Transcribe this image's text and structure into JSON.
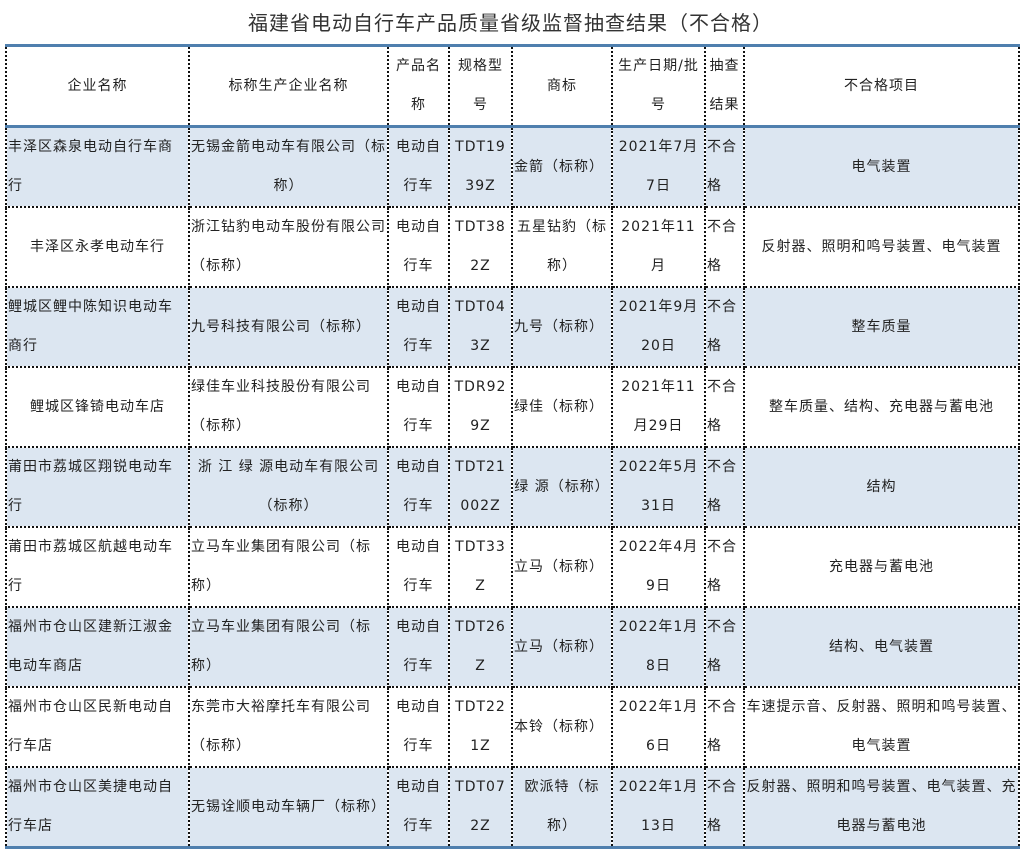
{
  "title": "福建省电动自行车产品质量省级监督抽查结果（不合格）",
  "colors": {
    "accent_border": "#4f7fae",
    "stripe": "#dce6f1"
  },
  "headers": [
    "企业名称",
    "标称生产企业名称",
    "产品名称",
    "规格型号",
    "商标",
    "生产日期/批号",
    "抽查结果",
    "不合格项目"
  ],
  "rows": [
    [
      "丰泽区森泉电动自行车商行",
      "无锡金箭电动车有限公司（标称）",
      "电动自行车",
      "TDT1939Z",
      "金箭（标称）",
      "2021年7月7日",
      "不合格",
      "电气装置"
    ],
    [
      "丰泽区永孝电动车行",
      "浙江钻豹电动车股份有限公司（标称）",
      "电动自行车",
      "TDT382Z",
      "五星钻豹（标称）",
      "2021年11月",
      "不合格",
      "反射器、照明和鸣号装置、电气装置"
    ],
    [
      "鲤城区鲤中陈知识电动车商行",
      "九号科技有限公司（标称）",
      "电动自行车",
      "TDT043Z",
      "九号（标称）",
      "2021年9月20日",
      "不合格",
      "整车质量"
    ],
    [
      "鲤城区锋锜电动车店",
      "绿佳车业科技股份有限公司（标称）",
      "电动自行车",
      "TDR929Z",
      "绿佳（标称）",
      "2021年11月29日",
      "不合格",
      "整车质量、结构、充电器与蓄电池"
    ],
    [
      "莆田市荔城区翔锐电动车行",
      "浙 江 绿 源电动车有限公司（标称）",
      "电动自行车",
      "TDT21002Z",
      "绿 源（标称）",
      "2022年5月31日",
      "不合格",
      "结构"
    ],
    [
      "莆田市荔城区航越电动车行",
      "立马车业集团有限公司（标称）",
      "电动自行车",
      "TDT33Z",
      "立马（标称）",
      "2022年4月9日",
      "不合格",
      "充电器与蓄电池"
    ],
    [
      "福州市仓山区建新江淑金电动车商店",
      "立马车业集团有限公司（标称）",
      "电动自行车",
      "TDT26Z",
      "立马（标称）",
      "2022年1月8日",
      "不合格",
      "结构、电气装置"
    ],
    [
      "福州市仓山区民新电动自行车店",
      "东莞市大裕摩托车有限公司（标称）",
      "电动自行车",
      "TDT221Z",
      "本铃（标称）",
      "2022年1月6日",
      "不合格",
      "车速提示音、反射器、照明和鸣号装置、电气装置"
    ],
    [
      "福州市仓山区美捷电动自行车店",
      "无锡诠顺电动车辆厂（标称）",
      "电动自行车",
      "TDT072Z",
      "欧派特（标称）",
      "2022年1月13日",
      "不合格",
      "反射器、照明和鸣号装置、电气装置、充电器与蓄电池"
    ]
  ]
}
